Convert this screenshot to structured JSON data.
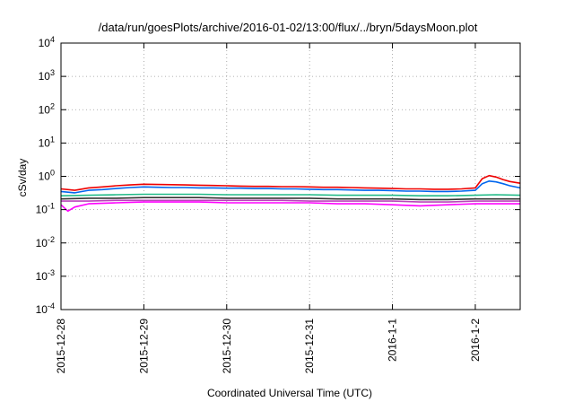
{
  "chart_data": {
    "type": "line",
    "title": "/data/run/goesPlots/archive/2016-01-02/13:00/flux/../bryn/5daysMoon.plot",
    "xlabel": "Coordinated Universal Time (UTC)",
    "ylabel": "cSv/day",
    "y_scale": "log",
    "ylim": [
      0.0001,
      10000
    ],
    "xlim": [
      "2015-12-28",
      "2016-01-02 13:00"
    ],
    "grid": true,
    "legend": "none",
    "y_ticks": [
      {
        "mantissa": "10",
        "exp": "-4",
        "value": 0.0001
      },
      {
        "mantissa": "10",
        "exp": "-3",
        "value": 0.001
      },
      {
        "mantissa": "10",
        "exp": "-2",
        "value": 0.01
      },
      {
        "mantissa": "10",
        "exp": "-1",
        "value": 0.1
      },
      {
        "mantissa": "10",
        "exp": "0",
        "value": 1
      },
      {
        "mantissa": "10",
        "exp": "1",
        "value": 10
      },
      {
        "mantissa": "10",
        "exp": "2",
        "value": 100
      },
      {
        "mantissa": "10",
        "exp": "3",
        "value": 1000
      },
      {
        "mantissa": "10",
        "exp": "4",
        "value": 10000
      }
    ],
    "x_ticks": [
      {
        "label": "2015-12-28",
        "value": "2015-12-28"
      },
      {
        "label": "2015-12-29",
        "value": "2015-12-29"
      },
      {
        "label": "2015-12-30",
        "value": "2015-12-30"
      },
      {
        "label": "2015-12-31",
        "value": "2015-12-31"
      },
      {
        "label": "2016-1-1",
        "value": "2016-01-01"
      },
      {
        "label": "2016-1-2",
        "value": "2016-01-02"
      }
    ],
    "series": [
      {
        "color": "#ee0000",
        "points": [
          [
            "2015-12-28 00:00",
            0.42
          ],
          [
            "2015-12-28 04:00",
            0.38
          ],
          [
            "2015-12-28 08:00",
            0.45
          ],
          [
            "2015-12-28 12:00",
            0.48
          ],
          [
            "2015-12-28 16:00",
            0.52
          ],
          [
            "2015-12-28 20:00",
            0.55
          ],
          [
            "2015-12-29 00:00",
            0.58
          ],
          [
            "2015-12-29 04:00",
            0.57
          ],
          [
            "2015-12-29 08:00",
            0.56
          ],
          [
            "2015-12-29 12:00",
            0.55
          ],
          [
            "2015-12-29 16:00",
            0.54
          ],
          [
            "2015-12-29 20:00",
            0.53
          ],
          [
            "2015-12-30 00:00",
            0.52
          ],
          [
            "2015-12-30 04:00",
            0.51
          ],
          [
            "2015-12-30 08:00",
            0.5
          ],
          [
            "2015-12-30 12:00",
            0.5
          ],
          [
            "2015-12-30 16:00",
            0.49
          ],
          [
            "2015-12-30 20:00",
            0.49
          ],
          [
            "2015-12-31 00:00",
            0.48
          ],
          [
            "2015-12-31 04:00",
            0.47
          ],
          [
            "2015-12-31 08:00",
            0.47
          ],
          [
            "2015-12-31 12:00",
            0.46
          ],
          [
            "2015-12-31 16:00",
            0.45
          ],
          [
            "2015-12-31 20:00",
            0.44
          ],
          [
            "2016-01-01 00:00",
            0.43
          ],
          [
            "2016-01-01 04:00",
            0.42
          ],
          [
            "2016-01-01 08:00",
            0.42
          ],
          [
            "2016-01-01 12:00",
            0.41
          ],
          [
            "2016-01-01 16:00",
            0.41
          ],
          [
            "2016-01-01 20:00",
            0.42
          ],
          [
            "2016-01-02 00:00",
            0.45
          ],
          [
            "2016-01-02 02:00",
            0.85
          ],
          [
            "2016-01-02 04:00",
            1.05
          ],
          [
            "2016-01-02 06:00",
            0.95
          ],
          [
            "2016-01-02 08:00",
            0.8
          ],
          [
            "2016-01-02 10:00",
            0.7
          ],
          [
            "2016-01-02 13:00",
            0.62
          ]
        ]
      },
      {
        "color": "#0066ee",
        "points": [
          [
            "2015-12-28 00:00",
            0.35
          ],
          [
            "2015-12-28 04:00",
            0.32
          ],
          [
            "2015-12-28 08:00",
            0.38
          ],
          [
            "2015-12-28 12:00",
            0.4
          ],
          [
            "2015-12-28 16:00",
            0.43
          ],
          [
            "2015-12-28 20:00",
            0.46
          ],
          [
            "2015-12-29 00:00",
            0.48
          ],
          [
            "2015-12-29 04:00",
            0.47
          ],
          [
            "2015-12-29 08:00",
            0.46
          ],
          [
            "2015-12-29 12:00",
            0.46
          ],
          [
            "2015-12-29 16:00",
            0.45
          ],
          [
            "2015-12-29 20:00",
            0.45
          ],
          [
            "2015-12-30 00:00",
            0.44
          ],
          [
            "2015-12-30 04:00",
            0.44
          ],
          [
            "2015-12-30 08:00",
            0.43
          ],
          [
            "2015-12-30 12:00",
            0.43
          ],
          [
            "2015-12-30 16:00",
            0.42
          ],
          [
            "2015-12-30 20:00",
            0.42
          ],
          [
            "2015-12-31 00:00",
            0.41
          ],
          [
            "2015-12-31 04:00",
            0.4
          ],
          [
            "2015-12-31 08:00",
            0.4
          ],
          [
            "2015-12-31 12:00",
            0.39
          ],
          [
            "2015-12-31 16:00",
            0.38
          ],
          [
            "2015-12-31 20:00",
            0.38
          ],
          [
            "2016-01-01 00:00",
            0.37
          ],
          [
            "2016-01-01 04:00",
            0.36
          ],
          [
            "2016-01-01 08:00",
            0.36
          ],
          [
            "2016-01-01 12:00",
            0.35
          ],
          [
            "2016-01-01 16:00",
            0.35
          ],
          [
            "2016-01-01 20:00",
            0.36
          ],
          [
            "2016-01-02 00:00",
            0.38
          ],
          [
            "2016-01-02 02:00",
            0.6
          ],
          [
            "2016-01-02 04:00",
            0.72
          ],
          [
            "2016-01-02 06:00",
            0.68
          ],
          [
            "2016-01-02 08:00",
            0.6
          ],
          [
            "2016-01-02 10:00",
            0.52
          ],
          [
            "2016-01-02 13:00",
            0.45
          ]
        ]
      },
      {
        "color": "#22bb88",
        "points": [
          [
            "2015-12-28 00:00",
            0.26
          ],
          [
            "2015-12-28 08:00",
            0.27
          ],
          [
            "2015-12-28 16:00",
            0.28
          ],
          [
            "2015-12-29 00:00",
            0.29
          ],
          [
            "2015-12-29 08:00",
            0.29
          ],
          [
            "2015-12-29 16:00",
            0.29
          ],
          [
            "2015-12-30 00:00",
            0.28
          ],
          [
            "2015-12-30 08:00",
            0.28
          ],
          [
            "2015-12-30 16:00",
            0.28
          ],
          [
            "2015-12-31 00:00",
            0.28
          ],
          [
            "2015-12-31 08:00",
            0.27
          ],
          [
            "2015-12-31 16:00",
            0.27
          ],
          [
            "2016-01-01 00:00",
            0.27
          ],
          [
            "2016-01-01 08:00",
            0.26
          ],
          [
            "2016-01-01 16:00",
            0.26
          ],
          [
            "2016-01-02 00:00",
            0.27
          ],
          [
            "2016-01-02 06:00",
            0.28
          ],
          [
            "2016-01-02 13:00",
            0.27
          ]
        ]
      },
      {
        "color": "#333333",
        "points": [
          [
            "2015-12-28 00:00",
            0.21
          ],
          [
            "2015-12-28 08:00",
            0.22
          ],
          [
            "2015-12-28 16:00",
            0.22
          ],
          [
            "2015-12-29 00:00",
            0.23
          ],
          [
            "2015-12-29 08:00",
            0.23
          ],
          [
            "2015-12-29 16:00",
            0.23
          ],
          [
            "2015-12-30 00:00",
            0.22
          ],
          [
            "2015-12-30 08:00",
            0.22
          ],
          [
            "2015-12-30 16:00",
            0.22
          ],
          [
            "2015-12-31 00:00",
            0.22
          ],
          [
            "2015-12-31 08:00",
            0.21
          ],
          [
            "2015-12-31 16:00",
            0.21
          ],
          [
            "2016-01-01 00:00",
            0.21
          ],
          [
            "2016-01-01 08:00",
            0.2
          ],
          [
            "2016-01-01 16:00",
            0.2
          ],
          [
            "2016-01-02 00:00",
            0.21
          ],
          [
            "2016-01-02 06:00",
            0.21
          ],
          [
            "2016-01-02 13:00",
            0.21
          ]
        ]
      },
      {
        "color": "#bb44bb",
        "points": [
          [
            "2015-12-28 00:00",
            0.18
          ],
          [
            "2015-12-28 08:00",
            0.18
          ],
          [
            "2015-12-28 16:00",
            0.19
          ],
          [
            "2015-12-29 00:00",
            0.19
          ],
          [
            "2015-12-29 08:00",
            0.19
          ],
          [
            "2015-12-29 16:00",
            0.19
          ],
          [
            "2015-12-30 00:00",
            0.19
          ],
          [
            "2015-12-30 08:00",
            0.19
          ],
          [
            "2015-12-30 16:00",
            0.19
          ],
          [
            "2015-12-31 00:00",
            0.18
          ],
          [
            "2015-12-31 08:00",
            0.18
          ],
          [
            "2015-12-31 16:00",
            0.18
          ],
          [
            "2016-01-01 00:00",
            0.18
          ],
          [
            "2016-01-01 08:00",
            0.17
          ],
          [
            "2016-01-01 16:00",
            0.17
          ],
          [
            "2016-01-02 00:00",
            0.18
          ],
          [
            "2016-01-02 06:00",
            0.18
          ],
          [
            "2016-01-02 13:00",
            0.18
          ]
        ]
      },
      {
        "color": "#ff00ff",
        "points": [
          [
            "2015-12-28 00:00",
            0.14
          ],
          [
            "2015-12-28 02:00",
            0.09
          ],
          [
            "2015-12-28 04:00",
            0.12
          ],
          [
            "2015-12-28 08:00",
            0.15
          ],
          [
            "2015-12-28 16:00",
            0.16
          ],
          [
            "2015-12-29 00:00",
            0.17
          ],
          [
            "2015-12-29 08:00",
            0.17
          ],
          [
            "2015-12-29 16:00",
            0.17
          ],
          [
            "2015-12-30 00:00",
            0.16
          ],
          [
            "2015-12-30 08:00",
            0.16
          ],
          [
            "2015-12-30 16:00",
            0.16
          ],
          [
            "2015-12-31 00:00",
            0.16
          ],
          [
            "2015-12-31 08:00",
            0.15
          ],
          [
            "2015-12-31 16:00",
            0.15
          ],
          [
            "2016-01-01 00:00",
            0.14
          ],
          [
            "2016-01-01 08:00",
            0.13
          ],
          [
            "2016-01-01 16:00",
            0.14
          ],
          [
            "2016-01-02 00:00",
            0.15
          ],
          [
            "2016-01-02 06:00",
            0.15
          ],
          [
            "2016-01-02 13:00",
            0.15
          ]
        ]
      }
    ]
  }
}
